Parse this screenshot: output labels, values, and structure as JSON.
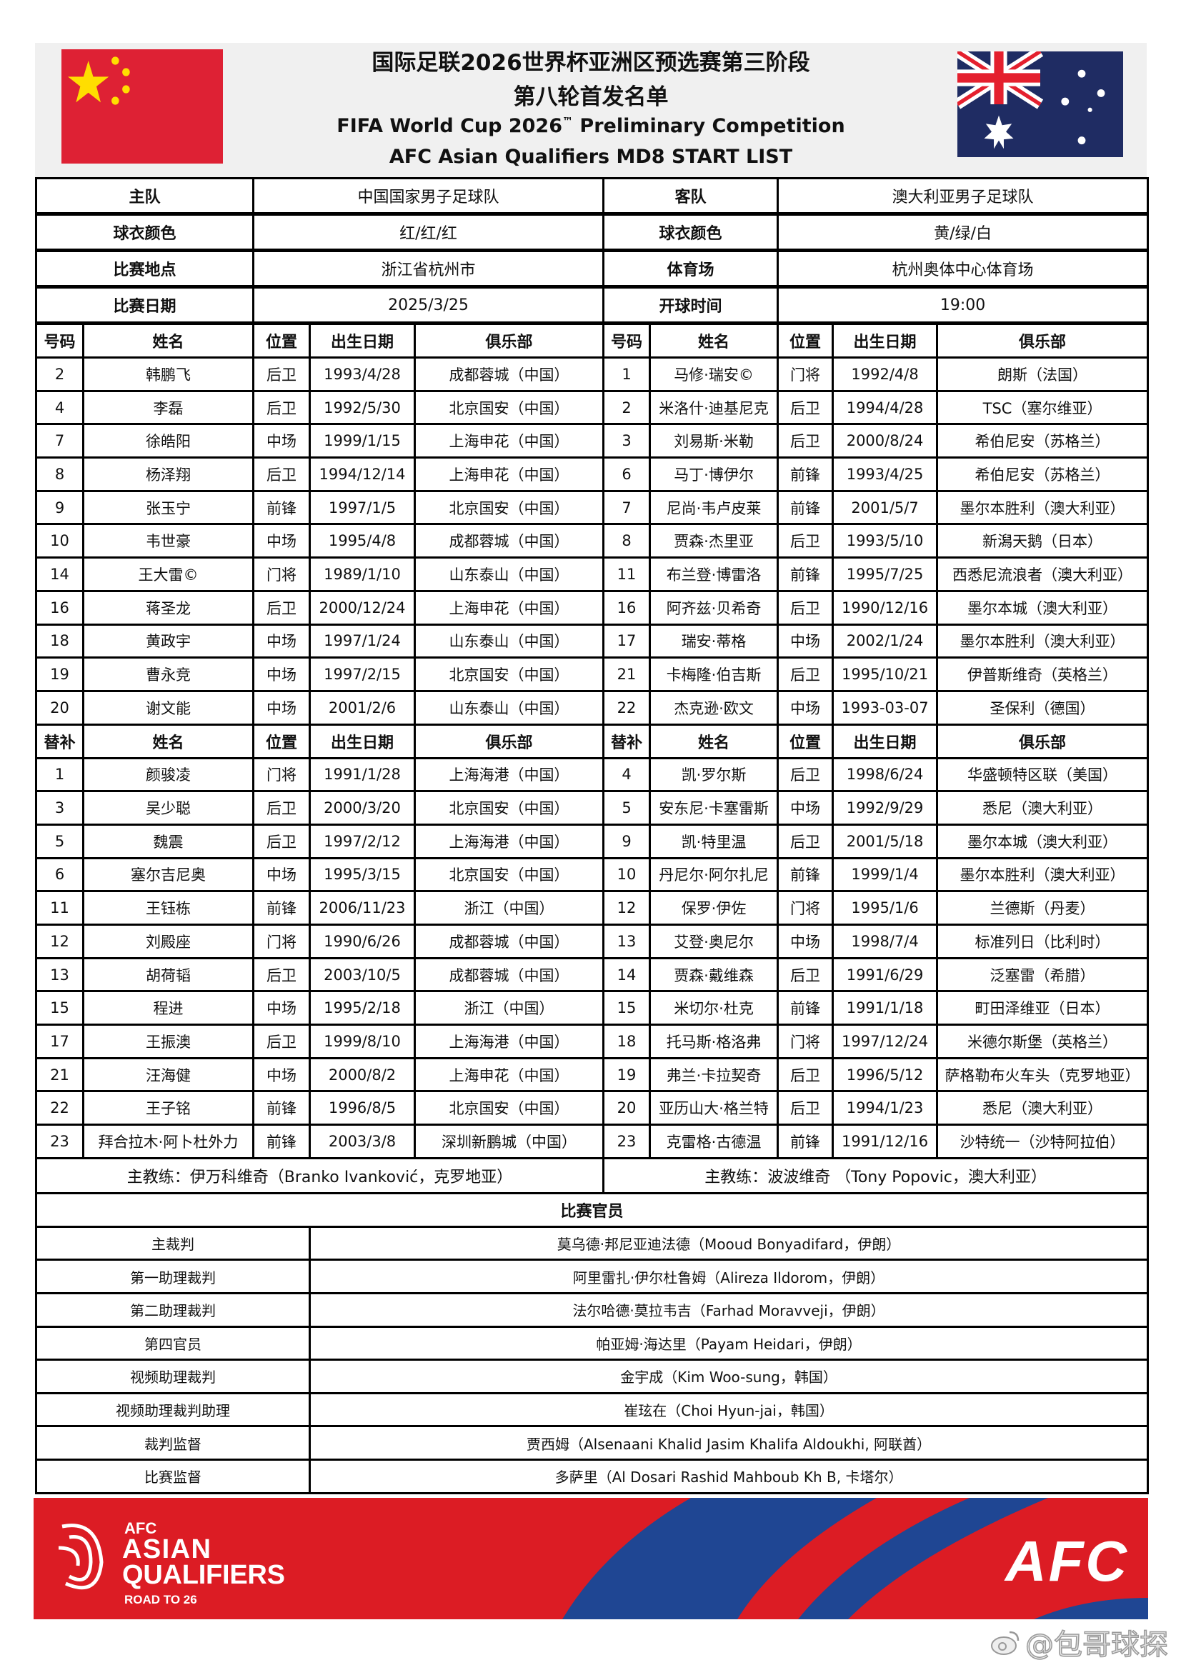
{
  "header": {
    "title_cn_1": "国际足联2026世界杯亚洲区预选赛第三阶段",
    "title_cn_2": "第八轮首发名单",
    "title_en_1": "FIFA World Cup 2026",
    "title_en_tm": "™",
    "title_en_1b": " Preliminary Competition",
    "title_en_2": "AFC Asian Qualifiers MD8 START LIST",
    "home_flag": "china-flag",
    "away_flag": "australia-flag"
  },
  "info": [
    {
      "label_l": "主队",
      "value_l": "中国国家男子足球队",
      "label_r": "客队",
      "value_r": "澳大利亚男子足球队"
    },
    {
      "label_l": "球衣颜色",
      "value_l": "红/红/红",
      "label_r": "球衣颜色",
      "value_r": "黄/绿/白"
    },
    {
      "label_l": "比赛地点",
      "value_l": "浙江省杭州市",
      "label_r": "体育场",
      "value_r": "杭州奥体中心体育场"
    },
    {
      "label_l": "比赛日期",
      "value_l": "2025/3/25",
      "label_r": "开球时间",
      "value_r": "19:00"
    }
  ],
  "starters_header": [
    "号码",
    "姓名",
    "位置",
    "出生日期",
    "俱乐部"
  ],
  "subs_header": [
    "替补",
    "姓名",
    "位置",
    "出生日期",
    "俱乐部"
  ],
  "home_starters": [
    [
      "2",
      "韩鹏飞",
      "后卫",
      "1993/4/28",
      "成都蓉城（中国）"
    ],
    [
      "4",
      "李磊",
      "后卫",
      "1992/5/30",
      "北京国安（中国）"
    ],
    [
      "7",
      "徐皓阳",
      "中场",
      "1999/1/15",
      "上海申花（中国）"
    ],
    [
      "8",
      "杨泽翔",
      "后卫",
      "1994/12/14",
      "上海申花（中国）"
    ],
    [
      "9",
      "张玉宁",
      "前锋",
      "1997/1/5",
      "北京国安（中国）"
    ],
    [
      "10",
      "韦世豪",
      "中场",
      "1995/4/8",
      "成都蓉城（中国）"
    ],
    [
      "14",
      "王大雷©",
      "门将",
      "1989/1/10",
      "山东泰山（中国）"
    ],
    [
      "16",
      "蒋圣龙",
      "后卫",
      "2000/12/24",
      "上海申花（中国）"
    ],
    [
      "18",
      "黄政宇",
      "中场",
      "1997/1/24",
      "山东泰山（中国）"
    ],
    [
      "19",
      "曹永竞",
      "中场",
      "1997/2/15",
      "北京国安（中国）"
    ],
    [
      "20",
      "谢文能",
      "中场",
      "2001/2/6",
      "山东泰山（中国）"
    ]
  ],
  "away_starters": [
    [
      "1",
      "马修·瑞安©",
      "门将",
      "1992/4/8",
      "朗斯（法国）"
    ],
    [
      "2",
      "米洛什·迪基尼克",
      "后卫",
      "1994/4/28",
      "TSC（塞尔维亚）"
    ],
    [
      "3",
      "刘易斯·米勒",
      "后卫",
      "2000/8/24",
      "希伯尼安（苏格兰）"
    ],
    [
      "6",
      "马丁·博伊尔",
      "前锋",
      "1993/4/25",
      "希伯尼安（苏格兰）"
    ],
    [
      "7",
      "尼尚·韦卢皮莱",
      "前锋",
      "2001/5/7",
      "墨尔本胜利（澳大利亚）"
    ],
    [
      "8",
      "贾森·杰里亚",
      "后卫",
      "1993/5/10",
      "新潟天鹅（日本）"
    ],
    [
      "11",
      "布兰登·博雷洛",
      "前锋",
      "1995/7/25",
      "西悉尼流浪者（澳大利亚）"
    ],
    [
      "16",
      "阿齐兹·贝希奇",
      "后卫",
      "1990/12/16",
      "墨尔本城（澳大利亚）"
    ],
    [
      "17",
      "瑞安·蒂格",
      "中场",
      "2002/1/24",
      "墨尔本胜利（澳大利亚）"
    ],
    [
      "21",
      "卡梅隆·伯吉斯",
      "后卫",
      "1995/10/21",
      "伊普斯维奇（英格兰）"
    ],
    [
      "22",
      "杰克逊·欧文",
      "中场",
      "1993-03-07",
      "圣保利（德国）"
    ]
  ],
  "home_subs": [
    [
      "1",
      "颜骏凌",
      "门将",
      "1991/1/28",
      "上海海港（中国）"
    ],
    [
      "3",
      "吴少聪",
      "后卫",
      "2000/3/20",
      "北京国安（中国）"
    ],
    [
      "5",
      "魏震",
      "后卫",
      "1997/2/12",
      "上海海港（中国）"
    ],
    [
      "6",
      "塞尔吉尼奥",
      "中场",
      "1995/3/15",
      "北京国安（中国）"
    ],
    [
      "11",
      "王钰栋",
      "前锋",
      "2006/11/23",
      "浙江（中国）"
    ],
    [
      "12",
      "刘殿座",
      "门将",
      "1990/6/26",
      "成都蓉城（中国）"
    ],
    [
      "13",
      "胡荷韬",
      "后卫",
      "2003/10/5",
      "成都蓉城（中国）"
    ],
    [
      "15",
      "程进",
      "中场",
      "1995/2/18",
      "浙江（中国）"
    ],
    [
      "17",
      "王振澳",
      "后卫",
      "1999/8/10",
      "上海海港（中国）"
    ],
    [
      "21",
      "汪海健",
      "中场",
      "2000/8/2",
      "上海申花（中国）"
    ],
    [
      "22",
      "王子铭",
      "前锋",
      "1996/8/5",
      "北京国安（中国）"
    ],
    [
      "23",
      "拜合拉木·阿卜杜外力",
      "前锋",
      "2003/3/8",
      "深圳新鹏城（中国）"
    ]
  ],
  "away_subs": [
    [
      "4",
      "凯·罗尔斯",
      "后卫",
      "1998/6/24",
      "华盛顿特区联（美国）"
    ],
    [
      "5",
      "安东尼·卡塞雷斯",
      "中场",
      "1992/9/29",
      "悉尼（澳大利亚）"
    ],
    [
      "9",
      "凯·特里温",
      "后卫",
      "2001/5/18",
      "墨尔本城（澳大利亚）"
    ],
    [
      "10",
      "丹尼尔·阿尔扎尼",
      "前锋",
      "1999/1/4",
      "墨尔本胜利（澳大利亚）"
    ],
    [
      "12",
      "保罗·伊佐",
      "门将",
      "1995/1/6",
      "兰德斯（丹麦）"
    ],
    [
      "13",
      "艾登·奥尼尔",
      "中场",
      "1998/7/4",
      "标准列日（比利时）"
    ],
    [
      "14",
      "贾森·戴维森",
      "后卫",
      "1991/6/29",
      "泛塞雷（希腊）"
    ],
    [
      "15",
      "米切尔·杜克",
      "前锋",
      "1991/1/18",
      "町田泽维亚（日本）"
    ],
    [
      "18",
      "托马斯·格洛弗",
      "门将",
      "1997/12/24",
      "米德尔斯堡（英格兰）"
    ],
    [
      "19",
      "弗兰·卡拉契奇",
      "后卫",
      "1996/5/12",
      "萨格勒布火车头（克罗地亚）"
    ],
    [
      "20",
      "亚历山大·格兰特",
      "后卫",
      "1994/1/23",
      "悉尼（澳大利亚）"
    ],
    [
      "23",
      "克雷格·古德温",
      "前锋",
      "1991/12/16",
      "沙特统一（沙特阿拉伯）"
    ]
  ],
  "coaches": {
    "home": "主教练：伊万科维奇（Branko Ivanković，克罗地亚）",
    "away": "主教练：波波维奇 （Tony Popovic，澳大利亚）"
  },
  "officials_title": "比赛官员",
  "officials": [
    {
      "role": "主裁判",
      "name": "莫乌德·邦尼亚迪法德（Mooud Bonyadifard，伊朗）"
    },
    {
      "role": "第一助理裁判",
      "name": "阿里雷扎·伊尔杜鲁姆（Alireza Ildorom，伊朗）"
    },
    {
      "role": "第二助理裁判",
      "name": "法尔哈德·莫拉韦吉（Farhad Moravveji，伊朗）"
    },
    {
      "role": "第四官员",
      "name": "帕亚姆·海达里（Payam Heidari，伊朗）"
    },
    {
      "role": "视频助理裁判",
      "name": "金宇成（Kim Woo-sung，韩国）"
    },
    {
      "role": "视频助理裁判助理",
      "name": "崔玹在（Choi Hyun-jai，韩国）"
    },
    {
      "role": "裁判监督",
      "name": "贾西姆（Alsenaani Khalid Jasim Khalifa Aldoukhi, 阿联酋）"
    },
    {
      "role": "比赛监督",
      "name": "多萨里（Al Dosari Rashid Mahboub Kh B, 卡塔尔）"
    }
  ],
  "banner": {
    "logo_left_lines": [
      "AFC",
      "ASIAN",
      "QUALIFIERS",
      "ROAD TO 26"
    ],
    "logo_right": "AFC",
    "colors": {
      "red": "#dc1c24",
      "blue": "#1f4693"
    }
  },
  "watermark": "@包哥球探"
}
